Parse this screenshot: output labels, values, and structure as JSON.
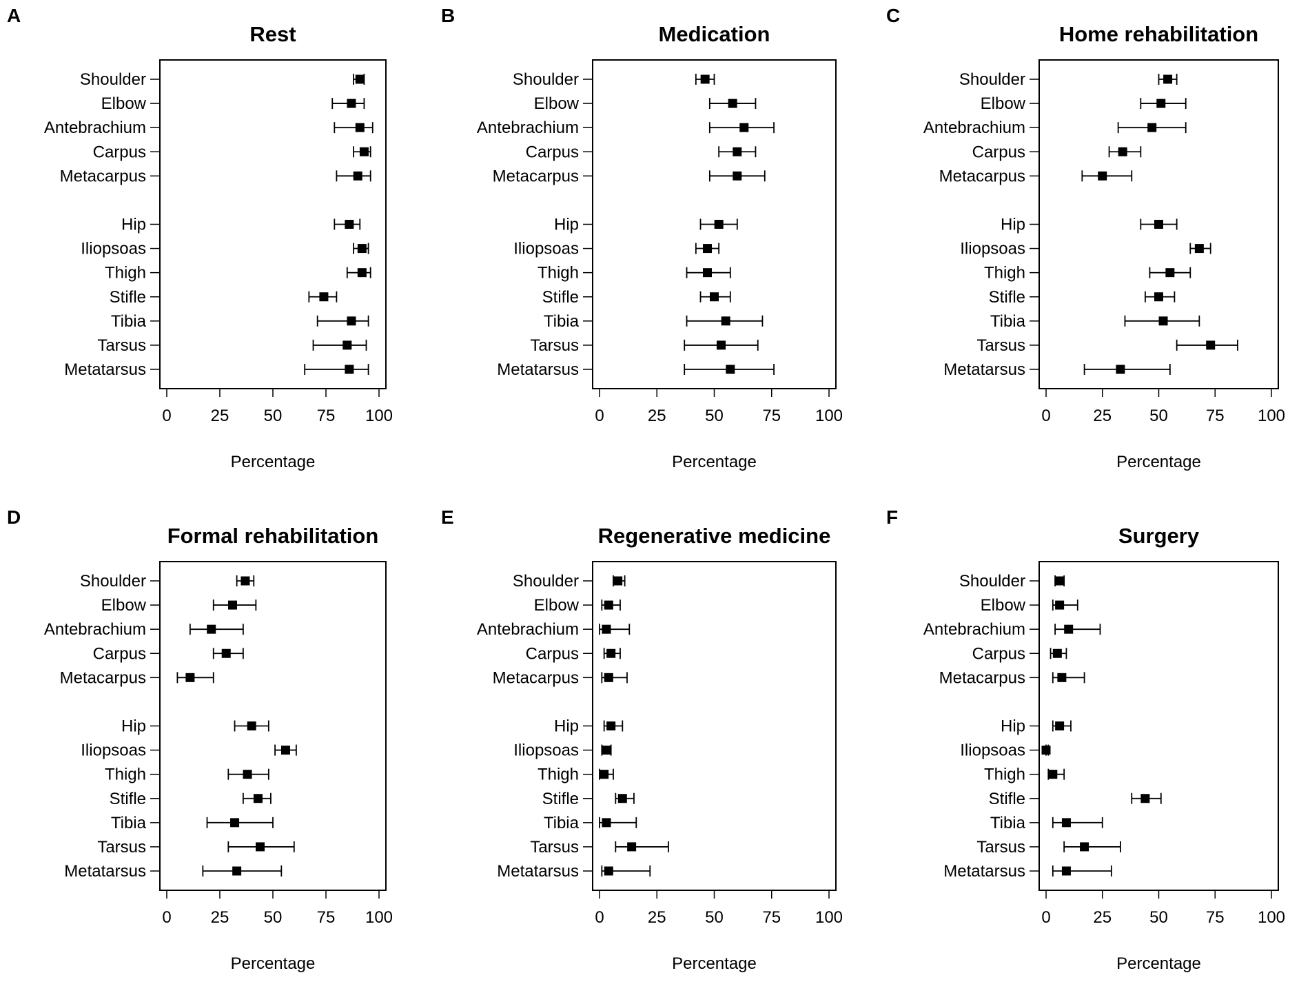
{
  "chart_data": [
    {
      "type": "scatter",
      "panel": "A",
      "title": "Rest",
      "xlabel": "Percentage",
      "xlim": [
        0,
        100
      ],
      "xticks": [
        0,
        25,
        50,
        75,
        100
      ],
      "categories": [
        "Shoulder",
        "Elbow",
        "Antebrachium",
        "Carpus",
        "Metacarpus",
        "Hip",
        "Iliopsoas",
        "Thigh",
        "Stifle",
        "Tibia",
        "Tarsus",
        "Metatarsus"
      ],
      "estimate": [
        91,
        87,
        91,
        93,
        90,
        86,
        92,
        92,
        74,
        87,
        85,
        86
      ],
      "ci_low": [
        88,
        78,
        79,
        88,
        80,
        79,
        88,
        85,
        67,
        71,
        69,
        65
      ],
      "ci_high": [
        93,
        93,
        97,
        96,
        96,
        91,
        95,
        96,
        80,
        95,
        94,
        95
      ]
    },
    {
      "type": "scatter",
      "panel": "B",
      "title": "Medication",
      "xlabel": "Percentage",
      "xlim": [
        0,
        100
      ],
      "xticks": [
        0,
        25,
        50,
        75,
        100
      ],
      "categories": [
        "Shoulder",
        "Elbow",
        "Antebrachium",
        "Carpus",
        "Metacarpus",
        "Hip",
        "Iliopsoas",
        "Thigh",
        "Stifle",
        "Tibia",
        "Tarsus",
        "Metatarsus"
      ],
      "estimate": [
        46,
        58,
        63,
        60,
        60,
        52,
        47,
        47,
        50,
        55,
        53,
        57
      ],
      "ci_low": [
        42,
        48,
        48,
        52,
        48,
        44,
        42,
        38,
        44,
        38,
        37,
        37
      ],
      "ci_high": [
        50,
        68,
        76,
        68,
        72,
        60,
        52,
        57,
        57,
        71,
        69,
        76
      ]
    },
    {
      "type": "scatter",
      "panel": "C",
      "title": "Home rehabilitation",
      "xlabel": "Percentage",
      "xlim": [
        0,
        100
      ],
      "xticks": [
        0,
        25,
        50,
        75,
        100
      ],
      "categories": [
        "Shoulder",
        "Elbow",
        "Antebrachium",
        "Carpus",
        "Metacarpus",
        "Hip",
        "Iliopsoas",
        "Thigh",
        "Stifle",
        "Tibia",
        "Tarsus",
        "Metatarsus"
      ],
      "estimate": [
        54,
        51,
        47,
        34,
        25,
        50,
        68,
        55,
        50,
        52,
        73,
        33
      ],
      "ci_low": [
        50,
        42,
        32,
        28,
        16,
        42,
        64,
        46,
        44,
        35,
        58,
        17
      ],
      "ci_high": [
        58,
        62,
        62,
        42,
        38,
        58,
        73,
        64,
        57,
        68,
        85,
        55
      ]
    },
    {
      "type": "scatter",
      "panel": "D",
      "title": "Formal rehabilitation",
      "xlabel": "Percentage",
      "xlim": [
        0,
        100
      ],
      "xticks": [
        0,
        25,
        50,
        75,
        100
      ],
      "categories": [
        "Shoulder",
        "Elbow",
        "Antebrachium",
        "Carpus",
        "Metacarpus",
        "Hip",
        "Iliopsoas",
        "Thigh",
        "Stifle",
        "Tibia",
        "Tarsus",
        "Metatarsus"
      ],
      "estimate": [
        37,
        31,
        21,
        28,
        11,
        40,
        56,
        38,
        43,
        32,
        44,
        33
      ],
      "ci_low": [
        33,
        22,
        11,
        22,
        5,
        32,
        51,
        29,
        36,
        19,
        29,
        17
      ],
      "ci_high": [
        41,
        42,
        36,
        36,
        22,
        48,
        61,
        48,
        49,
        50,
        60,
        54
      ]
    },
    {
      "type": "scatter",
      "panel": "E",
      "title": "Regenerative medicine",
      "xlabel": "Percentage",
      "xlim": [
        0,
        100
      ],
      "xticks": [
        0,
        25,
        50,
        75,
        100
      ],
      "categories": [
        "Shoulder",
        "Elbow",
        "Antebrachium",
        "Carpus",
        "Metacarpus",
        "Hip",
        "Iliopsoas",
        "Thigh",
        "Stifle",
        "Tibia",
        "Tarsus",
        "Metatarsus"
      ],
      "estimate": [
        8,
        4,
        3,
        5,
        4,
        5,
        3,
        2,
        10,
        3,
        14,
        4
      ],
      "ci_low": [
        6,
        1,
        0,
        2,
        1,
        2,
        1,
        0,
        7,
        0,
        7,
        1
      ],
      "ci_high": [
        11,
        9,
        13,
        9,
        12,
        10,
        5,
        6,
        15,
        16,
        30,
        22
      ]
    },
    {
      "type": "scatter",
      "panel": "F",
      "title": "Surgery",
      "xlabel": "Percentage",
      "xlim": [
        0,
        100
      ],
      "xticks": [
        0,
        25,
        50,
        75,
        100
      ],
      "categories": [
        "Shoulder",
        "Elbow",
        "Antebrachium",
        "Carpus",
        "Metacarpus",
        "Hip",
        "Iliopsoas",
        "Thigh",
        "Stifle",
        "Tibia",
        "Tarsus",
        "Metatarsus"
      ],
      "estimate": [
        6,
        6,
        10,
        5,
        7,
        6,
        0,
        3,
        44,
        9,
        17,
        9
      ],
      "ci_low": [
        4,
        3,
        4,
        2,
        3,
        3,
        0,
        1,
        38,
        3,
        8,
        3
      ],
      "ci_high": [
        8,
        14,
        24,
        9,
        17,
        11,
        1,
        8,
        51,
        25,
        33,
        29
      ]
    }
  ]
}
